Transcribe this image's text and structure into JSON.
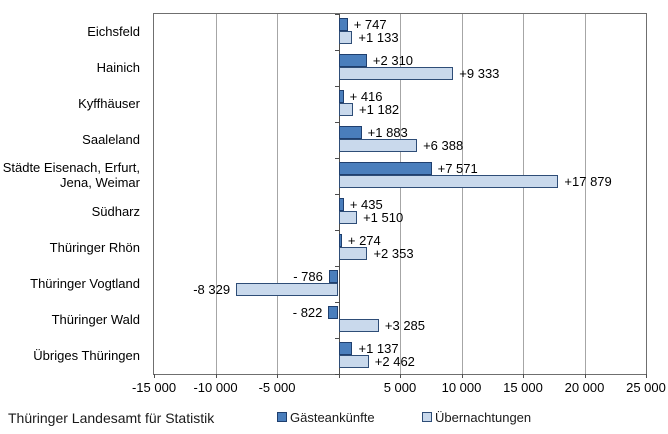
{
  "footer": {
    "source": "Thüringer Landesamt für Statistik"
  },
  "legend": {
    "items": [
      {
        "label": "Gästeankünfte",
        "color": "#4a7ebc",
        "border": "#1f3f6e"
      },
      {
        "label": "Übernachtungen",
        "color": "#c9d9ec",
        "border": "#2e4d77"
      }
    ]
  },
  "chart_data": {
    "type": "bar",
    "orientation": "horizontal",
    "title": "",
    "xlabel": "",
    "ylabel": "",
    "xlim": [
      -15000,
      25000
    ],
    "grid": true,
    "legend_position": "bottom",
    "categories": [
      "Eichsfeld",
      "Hainich",
      "Kyffhäuser",
      "Saaleland",
      "Städte Eisenach, Erfurt,\nJena, Weimar",
      "Südharz",
      "Thüringer Rhön",
      "Thüringer Vogtland",
      "Thüringer Wald",
      "Übriges Thüringen"
    ],
    "series": [
      {
        "name": "Gästeankünfte",
        "color": "#4a7ebc",
        "border": "#1f3f6e",
        "values": [
          747,
          2310,
          416,
          1883,
          7571,
          435,
          274,
          -786,
          -822,
          1137
        ],
        "labels": [
          "+ 747",
          "+2 310",
          "+ 416",
          "+1 883",
          "+7 571",
          "+ 435",
          "+ 274",
          "- 786",
          "- 822",
          "+1 137"
        ]
      },
      {
        "name": "Übernachtungen",
        "color": "#c9d9ec",
        "border": "#2e4d77",
        "values": [
          1133,
          9333,
          1182,
          6388,
          17879,
          1510,
          2353,
          -8329,
          3285,
          2462
        ],
        "labels": [
          "+1 133",
          "+9 333",
          "+1 182",
          "+6 388",
          "+17 879",
          "+1 510",
          "+2 353",
          "-8 329",
          "+3 285",
          "+2 462"
        ]
      }
    ],
    "x_tick_values": [
      -15000,
      -10000,
      -5000,
      0,
      5000,
      10000,
      15000,
      20000,
      25000
    ],
    "x_tick_labels": [
      "-15 000",
      "-10 000",
      "-5 000",
      "",
      "5 000",
      "10 000",
      "15 000",
      "20 000",
      "25 000"
    ],
    "gridline_values": [
      -10000,
      -5000,
      5000,
      10000,
      15000,
      20000
    ],
    "colors": {
      "gridline": "#a6a6a6",
      "axis": "#4d4d4d",
      "plot_border": "#6f6f6f",
      "text": "#000000"
    }
  }
}
